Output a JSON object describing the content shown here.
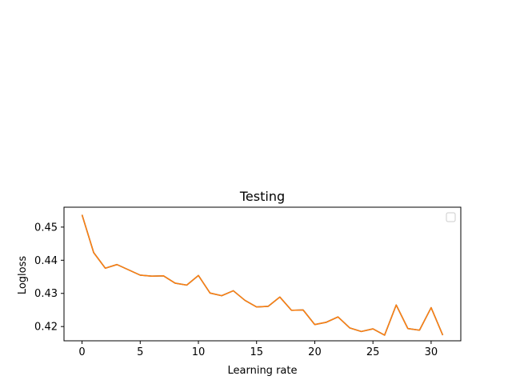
{
  "chart_data": {
    "type": "line",
    "title": "Testing",
    "xlabel": "Learning rate",
    "ylabel": "Logloss",
    "xlim": [
      -1.55,
      32.55
    ],
    "ylim": [
      0.4157,
      0.456
    ],
    "x_ticks": [
      0,
      5,
      10,
      15,
      20,
      25,
      30
    ],
    "y_ticks": [
      0.42,
      0.43,
      0.44,
      0.45
    ],
    "grid": false,
    "legend": {
      "placement": "top-right",
      "entries": []
    },
    "x": [
      0,
      1,
      2,
      3,
      4,
      5,
      6,
      7,
      8,
      9,
      10,
      11,
      12,
      13,
      14,
      15,
      16,
      17,
      18,
      19,
      20,
      21,
      22,
      23,
      24,
      25,
      26,
      27,
      28,
      29,
      30,
      31
    ],
    "series": [
      {
        "color": "#1f77b4",
        "values": [
          0.4537,
          0.4423,
          0.4376,
          0.4387,
          0.4371,
          0.4355,
          0.4352,
          0.4353,
          0.4331,
          0.4325,
          0.4354,
          0.4301,
          0.4293,
          0.4308,
          0.4279,
          0.4259,
          0.4261,
          0.4289,
          0.4249,
          0.425,
          0.4206,
          0.4213,
          0.4229,
          0.4196,
          0.4185,
          0.4193,
          0.4174,
          0.4265,
          0.4194,
          0.4189,
          0.4257,
          0.4174
        ]
      },
      {
        "color": "#ff7f0e",
        "values": [
          0.4537,
          0.4423,
          0.4376,
          0.4387,
          0.4371,
          0.4355,
          0.4352,
          0.4353,
          0.4331,
          0.4325,
          0.4354,
          0.4301,
          0.4293,
          0.4308,
          0.4279,
          0.4259,
          0.4261,
          0.4289,
          0.4249,
          0.425,
          0.4206,
          0.4213,
          0.4229,
          0.4196,
          0.4185,
          0.4193,
          0.4174,
          0.4265,
          0.4194,
          0.4189,
          0.4257,
          0.4174
        ]
      }
    ]
  }
}
